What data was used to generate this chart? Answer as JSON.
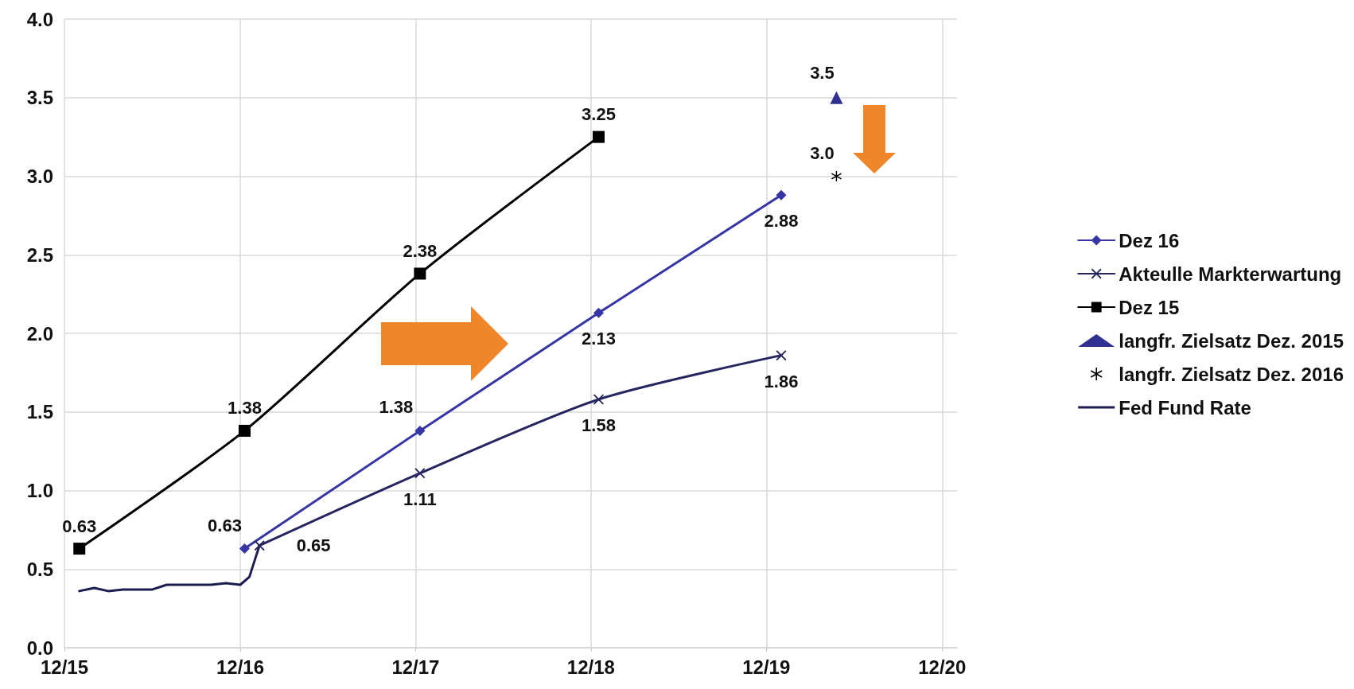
{
  "chart_data": {
    "type": "line",
    "xlim": [
      "2015-12-01",
      "2021-01-01"
    ],
    "xticks": [
      {
        "value": "2015-12-01",
        "label": "12/15"
      },
      {
        "value": "2016-12-01",
        "label": "12/16"
      },
      {
        "value": "2017-12-01",
        "label": "12/17"
      },
      {
        "value": "2018-12-01",
        "label": "12/18"
      },
      {
        "value": "2019-12-01",
        "label": "12/19"
      },
      {
        "value": "2020-12-01",
        "label": "12/20"
      }
    ],
    "ylim": [
      0,
      4
    ],
    "yticks": [
      {
        "value": 0,
        "label": "0.0"
      },
      0.5,
      {
        "value": 1,
        "label": "1.0"
      },
      1.5,
      {
        "value": 2,
        "label": "2.0"
      },
      2.5,
      {
        "value": 3,
        "label": "3.0"
      },
      3.5,
      {
        "value": 4,
        "label": "4.0"
      }
    ],
    "grid": true,
    "legend": "right",
    "series": [
      {
        "name": "Dez 16",
        "marker": "diamond",
        "color": "#3535a5",
        "x": [
          "2016-12-10",
          "2017-12-10",
          "2018-12-17",
          "2020-01-01"
        ],
        "values": [
          0.63,
          1.38,
          2.13,
          2.88
        ],
        "value_labels": [
          "0.63",
          "1.38",
          "2.13",
          "2.88"
        ]
      },
      {
        "name": "Akteulle Markterwartung",
        "marker": "cross",
        "color": "#252560",
        "x": [
          "2017-01-10",
          "2017-12-10",
          "2018-12-17",
          "2020-01-01"
        ],
        "values": [
          0.65,
          1.11,
          1.58,
          1.86
        ],
        "value_labels": [
          "0.65",
          "1.11",
          "1.58",
          "1.86"
        ]
      },
      {
        "name": "Dez 15",
        "marker": "square",
        "color": "#000000",
        "x": [
          "2016-01-01",
          "2016-12-10",
          "2017-12-10",
          "2018-12-17"
        ],
        "values": [
          0.63,
          1.38,
          2.38,
          3.25
        ],
        "value_labels": [
          "0.63",
          "1.38",
          "2.38",
          "3.25"
        ]
      },
      {
        "name": "langfr. Zielsatz Dez. 2015",
        "type": "scatter",
        "marker": "triangle",
        "color": "#2e3192",
        "x": [
          "2020-04-25"
        ],
        "values": [
          3.5
        ],
        "value_labels": [
          "3.5"
        ]
      },
      {
        "name": "langfr. Zielsatz Dez. 2016",
        "type": "scatter",
        "marker": "star",
        "color": "#000000",
        "x": [
          "2020-04-25"
        ],
        "values": [
          3.0
        ],
        "value_labels": [
          "3.0"
        ]
      },
      {
        "name": "Fed Fund Rate",
        "marker": "none",
        "color": "#1c1c50",
        "x": [
          "2016-01-01",
          "2016-02-01",
          "2016-03-01",
          "2016-04-01",
          "2016-05-01",
          "2016-06-01",
          "2016-07-01",
          "2016-08-01",
          "2016-09-01",
          "2016-10-01",
          "2016-11-01",
          "2016-12-01",
          "2016-12-20",
          "2017-01-10"
        ],
        "values": [
          0.36,
          0.38,
          0.36,
          0.37,
          0.37,
          0.37,
          0.4,
          0.4,
          0.4,
          0.4,
          0.41,
          0.4,
          0.45,
          0.65
        ]
      }
    ]
  }
}
